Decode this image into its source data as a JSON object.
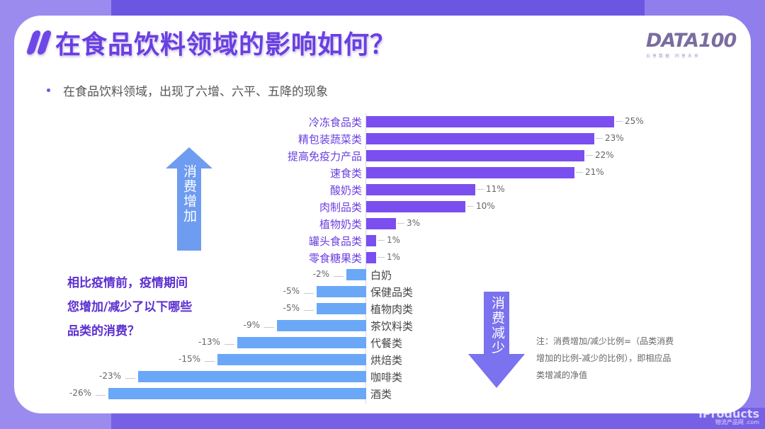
{
  "page": {
    "title": "在食品饮料领域的影响如何？",
    "bullet": "在食品饮料领域，出现了六增、六平、五降的现象",
    "logo": {
      "main": "DATA100",
      "sub": "云享数据 同享未来"
    },
    "question": [
      "相比疫情前，疫情期间",
      "您增加/减少了以下哪些",
      "品类的消费？"
    ],
    "arrow_up_label": "消费增加",
    "arrow_down_label": "消费减少",
    "note": "注：消费增加/减少比例=（品类消费增加的比例-减少的比例），即相应品类增减的净值",
    "watermark": {
      "main": "iProducts",
      "sub": "物流产品网 .com"
    },
    "colors": {
      "positive": "#7b4ef0",
      "negative": "#6aa8f7",
      "title": "#6a3fe0",
      "background": "#6a55e0"
    }
  },
  "chart_data": {
    "type": "bar",
    "orientation": "horizontal",
    "title": "相比疫情前，疫情期间您增加/减少了以下哪些品类的消费？",
    "xlabel": "",
    "ylabel": "",
    "xlim": [
      -26,
      25
    ],
    "grid": false,
    "categories": [
      "冷冻食品类",
      "精包装蔬菜类",
      "提高免疫力产品",
      "速食类",
      "酸奶类",
      "肉制品类",
      "植物奶类",
      "罐头食品类",
      "零食糖果类",
      "白奶",
      "保健品类",
      "植物肉类",
      "茶饮料类",
      "代餐类",
      "烘焙类",
      "咖啡类",
      "酒类"
    ],
    "values": [
      25,
      23,
      22,
      21,
      11,
      10,
      3,
      1,
      1,
      -2,
      -5,
      -5,
      -9,
      -13,
      -15,
      -23,
      -26
    ],
    "labels": [
      "25%",
      "23%",
      "22%",
      "21%",
      "11%",
      "10%",
      "3%",
      "1%",
      "1%",
      "-2%",
      "-5%",
      "-5%",
      "-9%",
      "-13%",
      "-15%",
      "-23%",
      "-26%"
    ],
    "annotations": [
      "消费增加",
      "消费减少"
    ]
  }
}
